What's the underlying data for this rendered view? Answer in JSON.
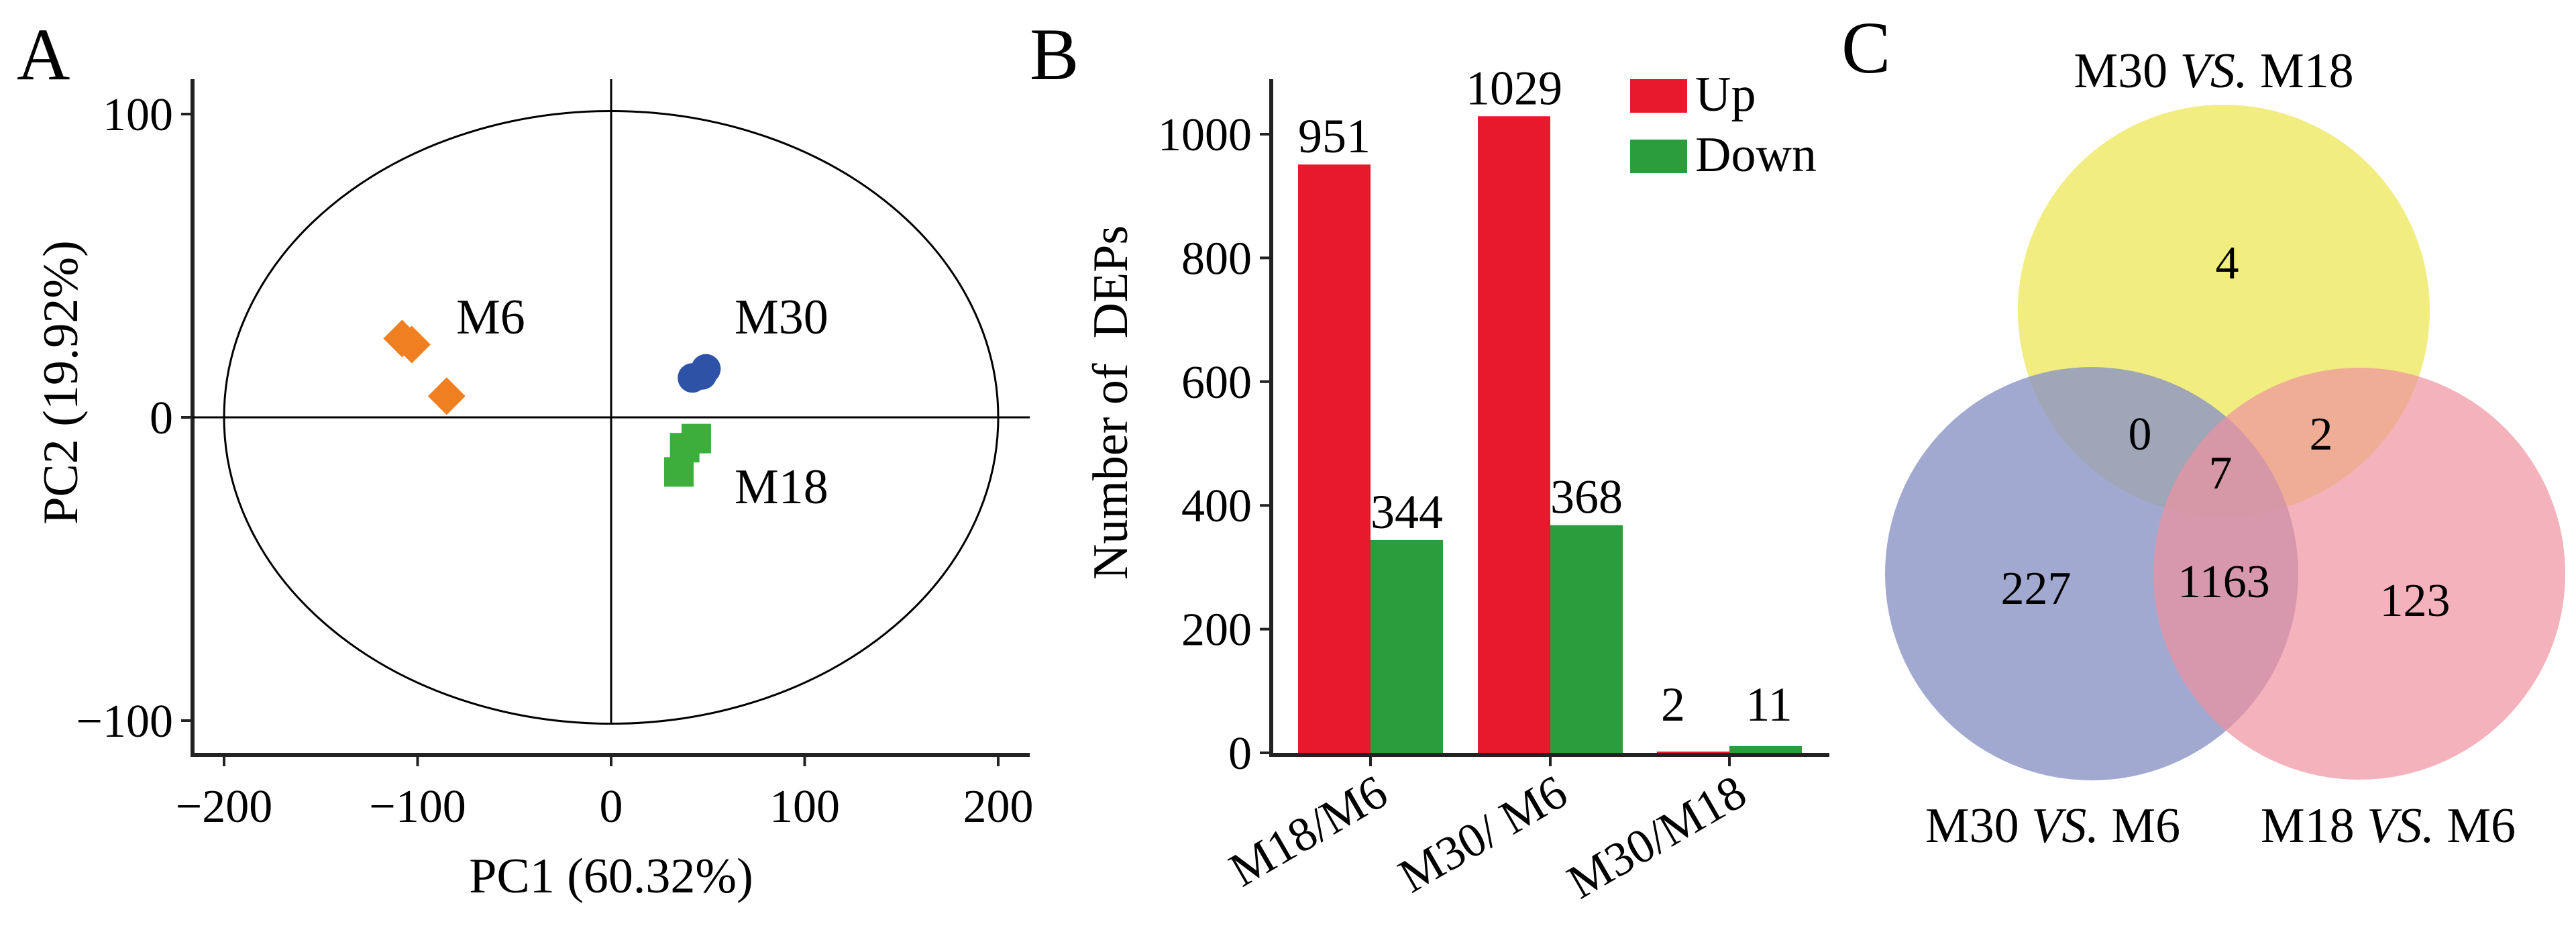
{
  "panels": {
    "a": {
      "letter": "A"
    },
    "b": {
      "letter": "B"
    },
    "c": {
      "letter": "C"
    }
  },
  "chart_data": [
    {
      "type": "scatter",
      "xlabel": "PC1 (60.32%)",
      "ylabel": "PC2 (19.92%)",
      "xlim": [
        -220,
        220
      ],
      "ylim": [
        -112,
        112
      ],
      "xticks": [
        -200,
        -100,
        0,
        100,
        200
      ],
      "yticks": [
        -100,
        0,
        100
      ],
      "tick_labels_x": [
        "−200",
        "−100",
        "0",
        "100",
        "200"
      ],
      "tick_labels_y": [
        "−100",
        "0",
        "100"
      ],
      "confidence_ellipse": {
        "rx": 200,
        "ry": 101,
        "cx": 0,
        "cy": 0
      },
      "grid": false,
      "series": [
        {
          "name": "M6",
          "marker": "diamond",
          "color": "#F07F21",
          "points": [
            [
              -108,
              26
            ],
            [
              -103,
              24
            ],
            [
              -85,
              7
            ]
          ]
        },
        {
          "name": "M30",
          "marker": "circle",
          "color": "#2E53A6",
          "points": [
            [
              42,
              13
            ],
            [
              47,
              14
            ],
            [
              49,
              16
            ]
          ]
        },
        {
          "name": "M18",
          "marker": "square",
          "color": "#3DAE3B",
          "points": [
            [
              35,
              -18
            ],
            [
              38,
              -10
            ],
            [
              44,
              -7
            ]
          ]
        }
      ]
    },
    {
      "type": "bar",
      "ylabel": "Number of  DEPs",
      "ylim": [
        0,
        1080
      ],
      "yticks": [
        0,
        200,
        400,
        600,
        800,
        1000
      ],
      "categories": [
        "M18/M6",
        "M30/ M6",
        "M30/M18"
      ],
      "legend_placement": "top-right",
      "series": [
        {
          "name": "Up",
          "color": "#E8192C",
          "values": [
            951,
            1029,
            2
          ]
        },
        {
          "name": "Down",
          "color": "#2B9D3D",
          "values": [
            344,
            368,
            11
          ]
        }
      ]
    },
    {
      "type": "venn",
      "sets": [
        {
          "label": "M30 VS. M18",
          "label_parts": [
            "M30 ",
            "VS.",
            " M18"
          ],
          "color": "#EEEA6B"
        },
        {
          "label": "M30 VS. M6",
          "label_parts": [
            "M30 ",
            "VS.",
            " M6"
          ],
          "color": "#8B93C4"
        },
        {
          "label": "M18 VS. M6",
          "label_parts": [
            "M18 ",
            "VS.",
            " M6"
          ],
          "color": "#EE91A0"
        }
      ],
      "regions": {
        "only_top": "4",
        "only_left": "227",
        "only_right": "123",
        "top_left": "0",
        "top_right": "2",
        "left_right": "1163",
        "all_three": "7"
      }
    }
  ]
}
